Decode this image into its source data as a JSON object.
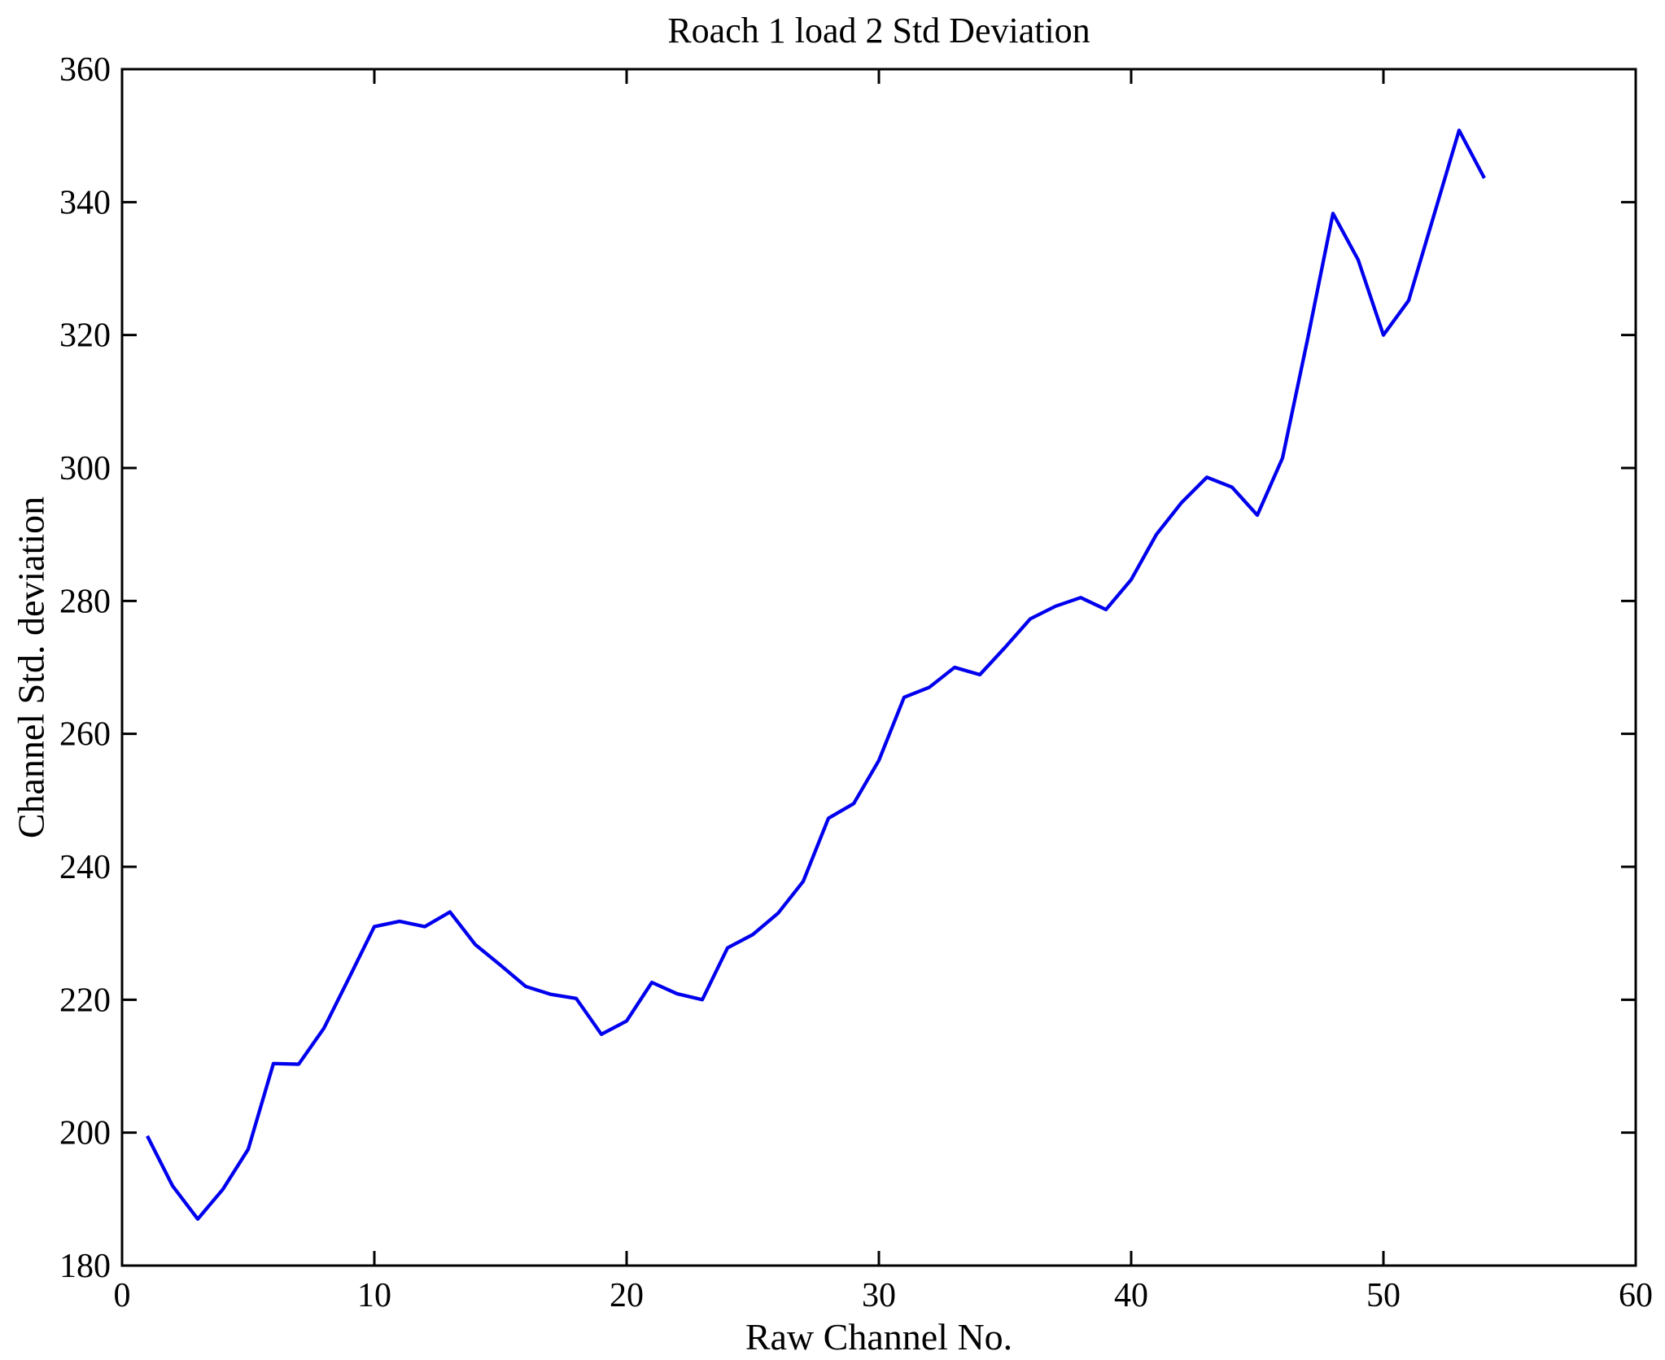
{
  "figure": {
    "background_color": "#ffffff",
    "axis_color": "#000000"
  },
  "chart_data": {
    "type": "line",
    "title": "Roach 1 load 2 Std Deviation",
    "xlabel": "Raw Channel No.",
    "ylabel": "Channel Std. deviation",
    "xlim": [
      0,
      60
    ],
    "ylim": [
      180,
      360
    ],
    "xticks": [
      0,
      10,
      20,
      30,
      40,
      50,
      60
    ],
    "yticks": [
      180,
      200,
      220,
      240,
      260,
      280,
      300,
      320,
      340,
      360
    ],
    "grid": false,
    "legend": "none",
    "box": true,
    "tick_direction": "in",
    "series": [
      {
        "name": "Channel Std. deviation",
        "color": "#0000ee",
        "x": [
          1,
          2,
          3,
          4,
          5,
          6,
          7,
          8,
          9,
          10,
          11,
          12,
          13,
          14,
          15,
          16,
          17,
          18,
          19,
          20,
          21,
          22,
          23,
          24,
          25,
          26,
          27,
          28,
          29,
          30,
          31,
          32,
          33,
          34,
          35,
          36,
          37,
          38,
          39,
          40,
          41,
          42,
          43,
          44,
          45,
          46,
          47,
          48,
          49,
          50,
          51,
          52,
          53,
          54
        ],
        "y": [
          199.5,
          192,
          187,
          191.5,
          197.5,
          210.4,
          210.3,
          215.7,
          223.3,
          231,
          231.8,
          231,
          233.2,
          228.3,
          225.2,
          222,
          220.8,
          220.2,
          214.8,
          216.8,
          222.6,
          220.9,
          220,
          227.8,
          229.8,
          233,
          237.8,
          247.3,
          249.5,
          256,
          265.5,
          267,
          270,
          268.9,
          273,
          277.3,
          279.2,
          280.5,
          278.7,
          283.2,
          290,
          294.8,
          298.6,
          297.1,
          292.9,
          301.5,
          319.5,
          338.3,
          331.3,
          320,
          325.2,
          338,
          350.8,
          343.6
        ]
      }
    ]
  }
}
